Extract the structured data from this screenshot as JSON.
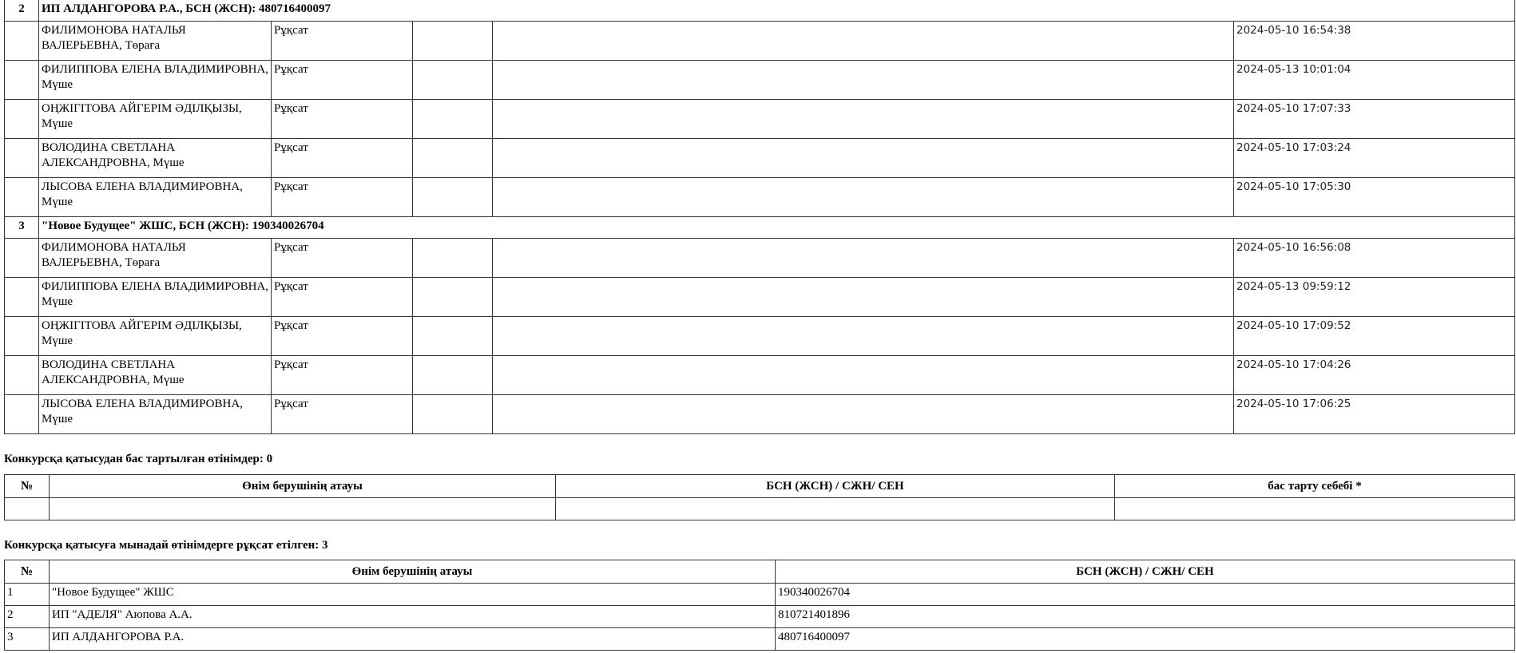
{
  "groups": [
    {
      "number": "2",
      "header": "ИП АЛДАНГОРОВА Р.А., БСН (ЖСН): 480716400097",
      "members": [
        {
          "name": "ФИЛИМОНОВА НАТАЛЬЯ ВАЛЕРЬЕВНА, Төраға",
          "decision": "Рұқсат",
          "date": "2024-05-10 16:54:38"
        },
        {
          "name": "ФИЛИППОВА ЕЛЕНА ВЛАДИМИРОВНА, Мүше",
          "decision": "Рұқсат",
          "date": "2024-05-13 10:01:04"
        },
        {
          "name": "ОҢЖІГІТОВА АЙГЕРІМ ӘДІЛҚЫЗЫ, Мүше",
          "decision": "Рұқсат",
          "date": "2024-05-10 17:07:33"
        },
        {
          "name": "ВОЛОДИНА СВЕТЛАНА АЛЕКСАНДРОВНА, Мүше",
          "decision": "Рұқсат",
          "date": "2024-05-10 17:03:24"
        },
        {
          "name": "ЛЫСОВА ЕЛЕНА ВЛАДИМИРОВНА, Мүше",
          "decision": "Рұқсат",
          "date": "2024-05-10 17:05:30"
        }
      ]
    },
    {
      "number": "3",
      "header": "\"Новое Будущее\" ЖШС, БСН (ЖСН): 190340026704",
      "members": [
        {
          "name": "ФИЛИМОНОВА НАТАЛЬЯ ВАЛЕРЬЕВНА, Төраға",
          "decision": "Рұқсат",
          "date": "2024-05-10 16:56:08"
        },
        {
          "name": "ФИЛИППОВА ЕЛЕНА ВЛАДИМИРОВНА, Мүше",
          "decision": "Рұқсат",
          "date": "2024-05-13 09:59:12"
        },
        {
          "name": "ОҢЖІГІТОВА АЙГЕРІМ ӘДІЛҚЫЗЫ, Мүше",
          "decision": "Рұқсат",
          "date": "2024-05-10 17:09:52"
        },
        {
          "name": "ВОЛОДИНА СВЕТЛАНА АЛЕКСАНДРОВНА, Мүше",
          "decision": "Рұқсат",
          "date": "2024-05-10 17:04:26"
        },
        {
          "name": "ЛЫСОВА ЕЛЕНА ВЛАДИМИРОВНА, Мүше",
          "decision": "Рұқсат",
          "date": "2024-05-10 17:06:25"
        }
      ]
    }
  ],
  "rejected": {
    "title": "Конкурсқа қатысудан бас тартылған өтінімдер: 0",
    "headers": [
      "№",
      "Өнім берушінің атауы",
      "БСН (ЖСН) / СЖН/ СЕН",
      "бас тарту себебі *"
    ]
  },
  "admitted": {
    "title": "Конкурсқа қатысуға мынадай өтінімдерге рұқсат етілген: 3",
    "headers": [
      "№",
      "Өнім берушінің атауы",
      "БСН (ЖСН) / СЖН/ СЕН"
    ],
    "rows": [
      [
        "1",
        "\"Новое Будущее\" ЖШС",
        "190340026704"
      ],
      [
        "2",
        "ИП \"АДЕЛЯ\" Аюпова А.А.",
        "810721401896"
      ],
      [
        "3",
        "ИП АЛДАНГОРОВА Р.А.",
        "480716400097"
      ]
    ]
  }
}
